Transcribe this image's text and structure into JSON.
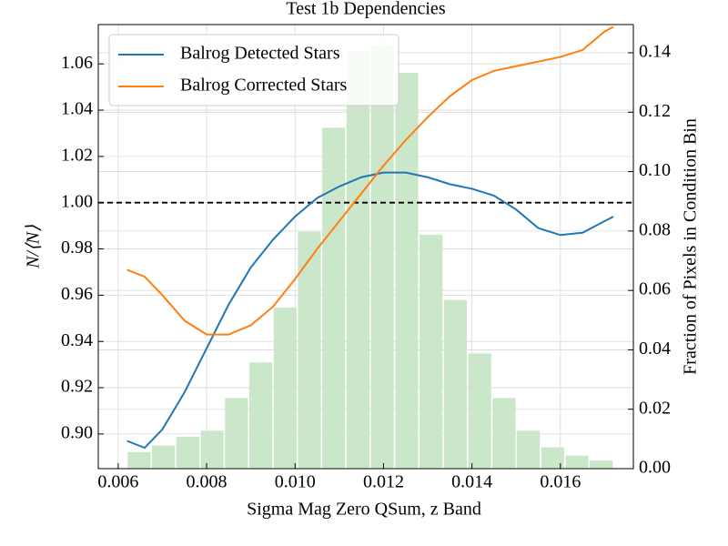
{
  "chart_data": {
    "type": "line",
    "title": "Test 1b Dependencies",
    "x_label": "Sigma Mag Zero QSum, z Band",
    "y_label": "N/⟨N⟩",
    "y2_label": "Fraction of Pixels in Condition Bin",
    "xlim": [
      0.00555,
      0.01765
    ],
    "ylim": [
      0.885,
      1.077
    ],
    "y2lim": [
      0,
      0.1495
    ],
    "xticks": [
      {
        "value": 0.006,
        "label": "0.006"
      },
      {
        "value": 0.008,
        "label": "0.008"
      },
      {
        "value": 0.01,
        "label": "0.010"
      },
      {
        "value": 0.012,
        "label": "0.012"
      },
      {
        "value": 0.014,
        "label": "0.014"
      },
      {
        "value": 0.016,
        "label": "0.016"
      }
    ],
    "yticks": [
      {
        "value": 0.9,
        "label": "0.90"
      },
      {
        "value": 0.92,
        "label": "0.92"
      },
      {
        "value": 0.94,
        "label": "0.94"
      },
      {
        "value": 0.96,
        "label": "0.96"
      },
      {
        "value": 0.98,
        "label": "0.98"
      },
      {
        "value": 1.0,
        "label": "1.00"
      },
      {
        "value": 1.02,
        "label": "1.02"
      },
      {
        "value": 1.04,
        "label": "1.04"
      },
      {
        "value": 1.06,
        "label": "1.06"
      }
    ],
    "y2ticks": [
      {
        "value": 0,
        "label": "0.00"
      },
      {
        "value": 0.02,
        "label": "0.02"
      },
      {
        "value": 0.04,
        "label": "0.04"
      },
      {
        "value": 0.06,
        "label": "0.06"
      },
      {
        "value": 0.08,
        "label": "0.08"
      },
      {
        "value": 0.1,
        "label": "0.10"
      },
      {
        "value": 0.12,
        "label": "0.12"
      },
      {
        "value": 0.14,
        "label": "0.14"
      }
    ],
    "grid": true,
    "legend": "upper-left",
    "hline": 1.0,
    "x": [
      0.0062,
      0.0066,
      0.007,
      0.0075,
      0.008,
      0.0085,
      0.009,
      0.0095,
      0.01,
      0.0105,
      0.011,
      0.0115,
      0.012,
      0.0125,
      0.013,
      0.0135,
      0.014,
      0.0145,
      0.015,
      0.0155,
      0.016,
      0.0165,
      0.017,
      0.0172
    ],
    "series": [
      {
        "name": "Balrog Detected Stars",
        "color": "#1f77b4",
        "values": [
          0.897,
          0.894,
          0.902,
          0.918,
          0.937,
          0.956,
          0.972,
          0.984,
          0.994,
          1.002,
          1.007,
          1.011,
          1.013,
          1.013,
          1.011,
          1.008,
          1.006,
          1.003,
          0.997,
          0.989,
          0.986,
          0.987,
          0.992,
          0.994
        ]
      },
      {
        "name": "Balrog Corrected Stars",
        "color": "#ff7f0e",
        "values": [
          0.971,
          0.968,
          0.96,
          0.949,
          0.943,
          0.943,
          0.947,
          0.955,
          0.967,
          0.98,
          0.992,
          1.004,
          1.016,
          1.027,
          1.037,
          1.046,
          1.053,
          1.057,
          1.059,
          1.061,
          1.063,
          1.066,
          1.074,
          1.076
        ]
      }
    ],
    "histogram": {
      "axis": "y2",
      "color": "#2ca02c",
      "bins": [
        0.0062,
        0.00675,
        0.0073,
        0.00785,
        0.0084,
        0.00895,
        0.0095,
        0.01005,
        0.0106,
        0.01115,
        0.0117,
        0.01225,
        0.0128,
        0.01335,
        0.0139,
        0.01445,
        0.015,
        0.01555,
        0.0161,
        0.01665,
        0.0172
      ],
      "values": [
        0.0058,
        0.008,
        0.011,
        0.013,
        0.024,
        0.036,
        0.0545,
        0.08,
        0.115,
        0.141,
        0.1425,
        0.1335,
        0.079,
        0.057,
        0.039,
        0.024,
        0.013,
        0.0074,
        0.0046,
        0.003
      ]
    }
  }
}
